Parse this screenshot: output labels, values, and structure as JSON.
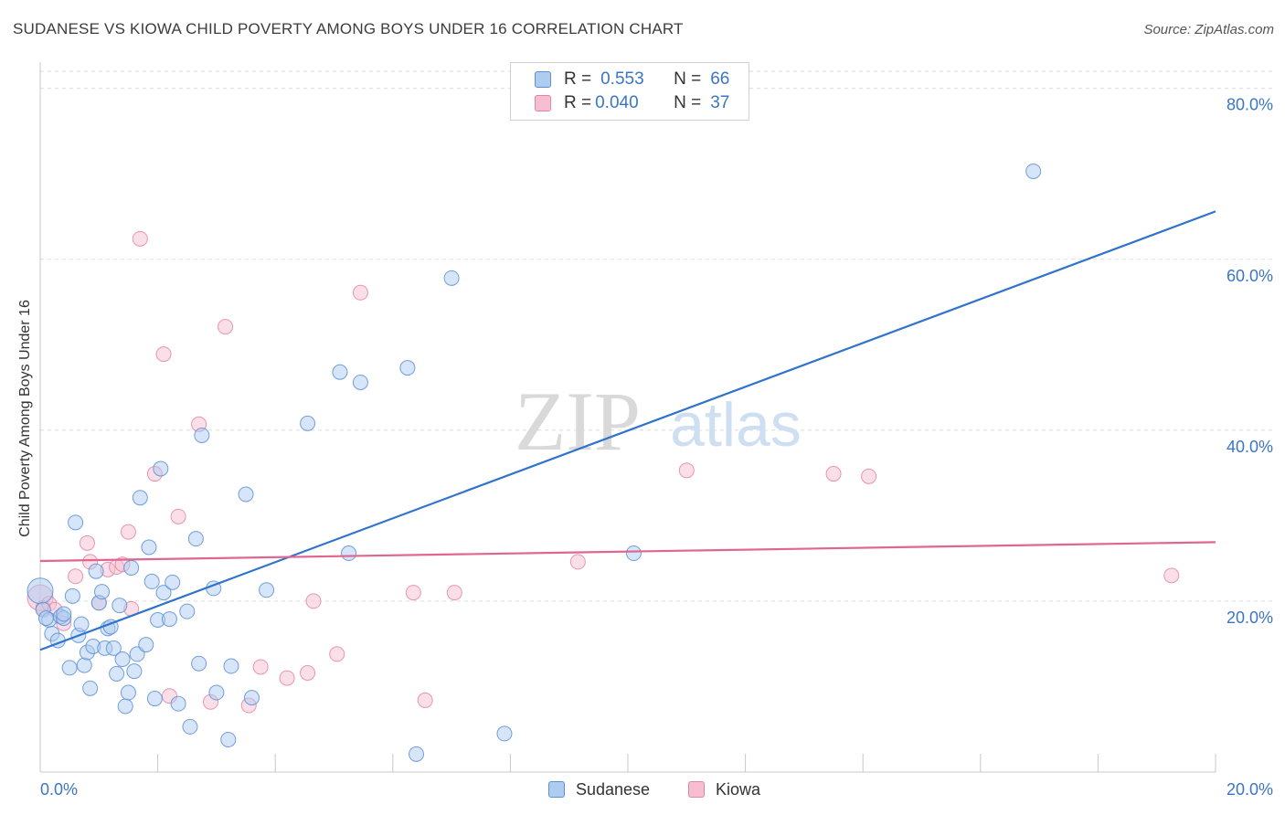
{
  "title": "SUDANESE VS KIOWA CHILD POVERTY AMONG BOYS UNDER 16 CORRELATION CHART",
  "source": "Source: ZipAtlas.com",
  "watermark": {
    "zip": "ZIP",
    "atlas": "atlas"
  },
  "legend": {
    "rows": [
      {
        "r_label": "R =",
        "r_value": "0.553",
        "n_label": "N =",
        "n_value": "66"
      },
      {
        "r_label": "R =",
        "r_value": "0.040",
        "n_label": "N =",
        "n_value": "37"
      }
    ]
  },
  "colors": {
    "blue_fill": "#aecbf0",
    "blue_stroke": "#5b8fd6",
    "blue_line": "#2f74cc",
    "pink_fill": "#f6bfd1",
    "pink_stroke": "#e584a6",
    "pink_line": "#e06590",
    "tick_text": "#3a76c4",
    "grid": "#dcdcdc"
  },
  "chart_data": {
    "type": "scatter",
    "title": "SUDANESE VS KIOWA CHILD POVERTY AMONG BOYS UNDER 16 CORRELATION CHART",
    "xlabel": "",
    "ylabel": "Child Poverty Among Boys Under 16",
    "xlim": [
      0,
      20
    ],
    "ylim": [
      0,
      82
    ],
    "x_tick_labels": [
      "0.0%",
      "20.0%"
    ],
    "y_ticks": [
      20,
      40,
      60,
      80
    ],
    "y_tick_labels": [
      "20.0%",
      "40.0%",
      "60.0%",
      "80.0%"
    ],
    "series": [
      {
        "name": "Sudanese",
        "color": "#aecbf0",
        "regression": {
          "x": [
            0,
            20
          ],
          "y": [
            14.3,
            65.6
          ]
        },
        "points": [
          [
            0.0,
            21.2
          ],
          [
            0.05,
            19.0
          ],
          [
            0.15,
            17.8
          ],
          [
            0.2,
            16.2
          ],
          [
            0.3,
            15.4
          ],
          [
            0.35,
            18.2
          ],
          [
            0.4,
            18.0
          ],
          [
            0.4,
            18.5
          ],
          [
            0.5,
            12.2
          ],
          [
            0.55,
            20.6
          ],
          [
            0.6,
            29.2
          ],
          [
            0.65,
            16.0
          ],
          [
            0.7,
            17.3
          ],
          [
            0.75,
            12.5
          ],
          [
            0.8,
            14.0
          ],
          [
            0.85,
            9.8
          ],
          [
            0.9,
            14.7
          ],
          [
            0.95,
            23.5
          ],
          [
            1.0,
            19.8
          ],
          [
            1.05,
            21.1
          ],
          [
            1.1,
            14.5
          ],
          [
            1.15,
            16.8
          ],
          [
            1.2,
            17.0
          ],
          [
            1.25,
            14.5
          ],
          [
            1.3,
            11.5
          ],
          [
            1.35,
            19.5
          ],
          [
            1.4,
            13.2
          ],
          [
            1.45,
            7.7
          ],
          [
            1.5,
            9.3
          ],
          [
            1.55,
            23.9
          ],
          [
            1.6,
            11.8
          ],
          [
            1.65,
            13.8
          ],
          [
            1.7,
            32.1
          ],
          [
            1.8,
            14.9
          ],
          [
            1.85,
            26.3
          ],
          [
            1.9,
            22.3
          ],
          [
            1.95,
            8.6
          ],
          [
            2.0,
            17.8
          ],
          [
            2.05,
            35.5
          ],
          [
            2.1,
            21.0
          ],
          [
            2.2,
            17.9
          ],
          [
            2.25,
            22.2
          ],
          [
            2.35,
            8.0
          ],
          [
            2.5,
            18.8
          ],
          [
            2.55,
            5.3
          ],
          [
            2.65,
            27.3
          ],
          [
            2.7,
            12.7
          ],
          [
            2.75,
            39.4
          ],
          [
            2.95,
            21.5
          ],
          [
            3.0,
            9.3
          ],
          [
            3.2,
            3.8
          ],
          [
            3.25,
            12.4
          ],
          [
            3.5,
            32.5
          ],
          [
            3.6,
            8.7
          ],
          [
            3.85,
            21.3
          ],
          [
            4.55,
            40.8
          ],
          [
            5.1,
            46.8
          ],
          [
            5.25,
            25.6
          ],
          [
            5.45,
            45.6
          ],
          [
            6.25,
            47.3
          ],
          [
            6.4,
            2.1
          ],
          [
            7.0,
            57.8
          ],
          [
            7.9,
            4.5
          ],
          [
            10.1,
            25.6
          ],
          [
            16.9,
            70.3
          ],
          [
            0.1,
            18.0
          ]
        ]
      },
      {
        "name": "Kiowa",
        "color": "#f6bfd1",
        "regression": {
          "x": [
            0,
            20
          ],
          "y": [
            24.7,
            26.9
          ]
        },
        "points": [
          [
            0.0,
            20.4
          ],
          [
            0.05,
            19.2
          ],
          [
            0.15,
            19.7
          ],
          [
            0.25,
            19.0
          ],
          [
            0.4,
            17.4
          ],
          [
            0.6,
            22.9
          ],
          [
            0.8,
            26.8
          ],
          [
            0.85,
            24.6
          ],
          [
            1.0,
            19.8
          ],
          [
            1.15,
            23.7
          ],
          [
            1.3,
            24.0
          ],
          [
            1.4,
            24.3
          ],
          [
            1.5,
            28.1
          ],
          [
            1.55,
            19.1
          ],
          [
            1.7,
            62.4
          ],
          [
            1.95,
            34.9
          ],
          [
            2.1,
            48.9
          ],
          [
            2.2,
            8.9
          ],
          [
            2.35,
            29.9
          ],
          [
            2.9,
            8.2
          ],
          [
            2.7,
            40.7
          ],
          [
            3.15,
            52.1
          ],
          [
            3.55,
            7.8
          ],
          [
            3.75,
            12.3
          ],
          [
            4.2,
            11.0
          ],
          [
            4.55,
            11.6
          ],
          [
            4.65,
            20.0
          ],
          [
            5.05,
            13.8
          ],
          [
            5.45,
            56.1
          ],
          [
            6.35,
            21.0
          ],
          [
            6.55,
            8.4
          ],
          [
            7.05,
            21.0
          ],
          [
            9.15,
            24.6
          ],
          [
            11.0,
            35.3
          ],
          [
            13.5,
            34.9
          ],
          [
            14.1,
            34.6
          ],
          [
            19.25,
            23.0
          ]
        ]
      }
    ]
  },
  "bottom_legend": {
    "items": [
      "Sudanese",
      "Kiowa"
    ]
  }
}
